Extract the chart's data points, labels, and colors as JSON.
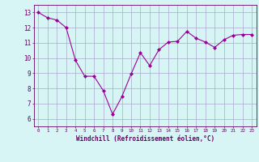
{
  "x": [
    0,
    1,
    2,
    3,
    4,
    5,
    6,
    7,
    8,
    9,
    10,
    11,
    12,
    13,
    14,
    15,
    16,
    17,
    18,
    19,
    20,
    21,
    22,
    23
  ],
  "y": [
    13.0,
    12.65,
    12.5,
    12.0,
    9.85,
    8.8,
    8.8,
    7.85,
    6.3,
    7.45,
    8.95,
    10.35,
    9.5,
    10.55,
    11.05,
    11.1,
    11.75,
    11.3,
    11.05,
    10.7,
    11.2,
    11.5,
    11.55,
    11.55
  ],
  "line_color": "#990099",
  "marker": "D",
  "marker_size": 2,
  "bg_color": "#d8f5f5",
  "grid_color": "#aaaacc",
  "xlabel": "Windchill (Refroidissement éolien,°C)",
  "xlabel_color": "#660066",
  "tick_color": "#660066",
  "xlim": [
    -0.5,
    23.5
  ],
  "ylim": [
    5.5,
    13.5
  ],
  "yticks": [
    6,
    7,
    8,
    9,
    10,
    11,
    12,
    13
  ],
  "xticks": [
    0,
    1,
    2,
    3,
    4,
    5,
    6,
    7,
    8,
    9,
    10,
    11,
    12,
    13,
    14,
    15,
    16,
    17,
    18,
    19,
    20,
    21,
    22,
    23
  ],
  "figsize": [
    3.2,
    2.0
  ],
  "dpi": 100
}
